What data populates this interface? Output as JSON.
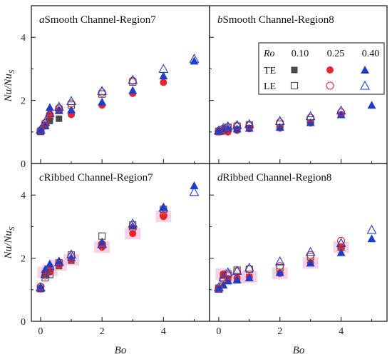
{
  "colors": {
    "ro010": "#4a4a4a",
    "ro025": "#e8262a",
    "ro040": "#1f3ccc",
    "highlight": "#f3c3dd"
  },
  "legend": {
    "title": "Ro",
    "columns": [
      "0.10",
      "0.25",
      "0.40"
    ],
    "rows": [
      "TE",
      "LE"
    ],
    "markers": {
      "TE": [
        "filled-square",
        "filled-circle",
        "filled-triangle"
      ],
      "LE": [
        "open-square",
        "open-circle",
        "open-triangle"
      ]
    }
  },
  "axes": {
    "xlabel": "Bo",
    "ylabel": "Nu/Nu",
    "ylabel_sub": "S",
    "xlim": [
      -0.3,
      5.5
    ],
    "ylim": [
      0,
      5
    ],
    "xticks": [
      "0",
      "2",
      "4"
    ],
    "yticks": [
      "0",
      "2",
      "4"
    ]
  },
  "chart_data": [
    {
      "type": "scatter",
      "letter": "a",
      "title": "Smooth Channel-Region7",
      "highlight": false,
      "series": [
        {
          "name": "TE Ro=0.10",
          "marker": "filled-square",
          "x": [
            0,
            0.15,
            0.3,
            0.6,
            1.0
          ],
          "y": [
            1.0,
            1.18,
            1.35,
            1.42,
            1.58
          ]
        },
        {
          "name": "TE Ro=0.25",
          "marker": "filled-circle",
          "x": [
            0,
            0.15,
            0.3,
            0.6,
            1.0,
            2.0,
            3.0,
            4.0
          ],
          "y": [
            1.02,
            1.22,
            1.55,
            1.68,
            1.55,
            1.85,
            2.22,
            2.57
          ]
        },
        {
          "name": "TE Ro=0.40",
          "marker": "filled-triangle",
          "x": [
            0,
            0.15,
            0.3,
            0.6,
            1.0,
            2.0,
            3.0,
            4.0,
            5.0
          ],
          "y": [
            1.05,
            1.2,
            1.78,
            1.68,
            1.7,
            1.95,
            2.32,
            2.78,
            3.25
          ]
        },
        {
          "name": "LE Ro=0.10",
          "marker": "open-square",
          "x": [
            0,
            0.15,
            0.3,
            0.6,
            1.0,
            2.0,
            3.0
          ],
          "y": [
            1.02,
            1.25,
            1.5,
            1.72,
            1.85,
            2.2,
            2.58
          ]
        },
        {
          "name": "LE Ro=0.25",
          "marker": "open-circle",
          "x": [
            0,
            0.15,
            0.3,
            0.6,
            1.0,
            2.0,
            3.0
          ],
          "y": [
            1.05,
            1.28,
            1.55,
            1.75,
            1.9,
            2.25,
            2.62
          ]
        },
        {
          "name": "LE Ro=0.40",
          "marker": "open-triangle",
          "x": [
            0,
            0.15,
            0.3,
            0.6,
            1.0,
            2.0,
            3.0,
            4.0,
            5.0
          ],
          "y": [
            1.08,
            1.32,
            1.6,
            1.8,
            1.98,
            2.3,
            2.65,
            3.0,
            3.32
          ]
        }
      ]
    },
    {
      "type": "scatter",
      "letter": "b",
      "title": "Smooth Channel-Region8",
      "highlight": false,
      "series": [
        {
          "name": "TE Ro=0.10",
          "marker": "filled-square",
          "x": [
            0,
            0.15,
            0.3,
            0.6,
            1.0
          ],
          "y": [
            1.0,
            1.02,
            1.05,
            1.08,
            1.12
          ]
        },
        {
          "name": "TE Ro=0.25",
          "marker": "filled-circle",
          "x": [
            0,
            0.15,
            0.3,
            0.6,
            1.0,
            2.0,
            3.0,
            4.0
          ],
          "y": [
            1.0,
            1.02,
            1.0,
            1.05,
            1.1,
            1.12,
            1.28,
            1.55
          ]
        },
        {
          "name": "TE Ro=0.40",
          "marker": "filled-triangle",
          "x": [
            0,
            0.15,
            0.3,
            0.6,
            1.0,
            2.0,
            3.0,
            4.0,
            5.0
          ],
          "y": [
            1.02,
            1.08,
            1.12,
            1.1,
            1.12,
            1.15,
            1.3,
            1.55,
            1.85
          ]
        },
        {
          "name": "LE Ro=0.10",
          "marker": "open-square",
          "x": [
            0,
            0.15,
            0.3,
            0.6,
            1.0,
            2.0,
            3.0
          ],
          "y": [
            1.02,
            1.08,
            1.15,
            1.18,
            1.22,
            1.25,
            1.38
          ]
        },
        {
          "name": "LE Ro=0.25",
          "marker": "open-circle",
          "x": [
            0,
            0.15,
            0.3,
            0.6,
            1.0,
            2.0,
            3.0,
            4.0
          ],
          "y": [
            1.03,
            1.1,
            1.15,
            1.2,
            1.2,
            1.3,
            1.45,
            1.62
          ]
        },
        {
          "name": "LE Ro=0.40",
          "marker": "open-triangle",
          "x": [
            0,
            0.15,
            0.3,
            0.6,
            1.0,
            2.0,
            3.0,
            4.0
          ],
          "y": [
            1.05,
            1.12,
            1.18,
            1.22,
            1.25,
            1.35,
            1.5,
            1.68
          ]
        }
      ]
    },
    {
      "type": "scatter",
      "letter": "c",
      "title": "Ribbed Channel-Region7",
      "highlight": true,
      "series": [
        {
          "name": "TE Ro=0.10",
          "marker": "filled-square",
          "x": [
            0,
            0.15,
            0.3,
            0.6,
            1.0
          ],
          "y": [
            1.02,
            1.5,
            1.58,
            1.75,
            1.92
          ]
        },
        {
          "name": "TE Ro=0.25",
          "marker": "filled-circle",
          "x": [
            0,
            0.15,
            0.3,
            0.6,
            1.0,
            2.0,
            3.0,
            4.0
          ],
          "y": [
            1.02,
            1.55,
            1.62,
            1.78,
            1.95,
            2.35,
            2.78,
            3.32
          ]
        },
        {
          "name": "TE Ro=0.40",
          "marker": "filled-triangle",
          "x": [
            0,
            0.15,
            0.3,
            0.6,
            1.0,
            2.0,
            3.0,
            4.0,
            5.0
          ],
          "y": [
            1.05,
            1.65,
            1.82,
            1.92,
            2.02,
            2.52,
            3.02,
            3.62,
            4.3
          ]
        },
        {
          "name": "LE Ro=0.10",
          "marker": "open-square",
          "x": [
            0,
            0.15,
            0.3,
            0.6,
            1.0,
            2.0,
            3.0,
            4.0
          ],
          "y": [
            1.05,
            1.38,
            1.48,
            1.85,
            2.1,
            2.7,
            3.05,
            3.55
          ]
        },
        {
          "name": "LE Ro=0.25",
          "marker": "open-circle",
          "x": [
            0,
            0.15,
            0.3,
            0.6,
            1.0,
            2.0,
            3.0,
            4.0
          ],
          "y": [
            1.1,
            1.45,
            1.58,
            1.82,
            2.05,
            2.45,
            2.95,
            3.35
          ]
        },
        {
          "name": "LE Ro=0.40",
          "marker": "open-triangle",
          "x": [
            0,
            0.15,
            0.3,
            0.6,
            1.0,
            2.0,
            3.0,
            4.0,
            5.0
          ],
          "y": [
            1.08,
            1.5,
            1.75,
            1.88,
            2.12,
            2.45,
            3.1,
            3.6,
            4.1
          ]
        }
      ]
    },
    {
      "type": "scatter",
      "letter": "d",
      "title": "Ribbed Channel-Region8",
      "highlight": true,
      "series": [
        {
          "name": "TE Ro=0.10",
          "marker": "filled-square",
          "x": [
            0,
            0.15,
            0.3,
            0.6,
            1.0
          ],
          "y": [
            1.02,
            1.45,
            1.32,
            1.3,
            1.4
          ]
        },
        {
          "name": "TE Ro=0.25",
          "marker": "filled-circle",
          "x": [
            0,
            0.15,
            0.3,
            0.6,
            1.0,
            2.0,
            3.0,
            4.0
          ],
          "y": [
            1.02,
            1.5,
            1.35,
            1.38,
            1.4,
            1.52,
            1.85,
            2.35
          ]
        },
        {
          "name": "TE Ro=0.40",
          "marker": "filled-triangle",
          "x": [
            0,
            0.15,
            0.3,
            0.6,
            1.0,
            2.0,
            3.0,
            4.0,
            5.0
          ],
          "y": [
            1.02,
            1.15,
            1.28,
            1.32,
            1.38,
            1.55,
            1.85,
            2.18,
            2.62
          ]
        },
        {
          "name": "LE Ro=0.10",
          "marker": "open-square",
          "x": [
            0,
            0.15,
            0.3,
            0.6,
            1.0,
            2.0,
            3.0,
            4.0
          ],
          "y": [
            1.05,
            1.3,
            1.5,
            1.62,
            1.65,
            1.7,
            2.05,
            2.35
          ]
        },
        {
          "name": "LE Ro=0.25",
          "marker": "open-circle",
          "x": [
            0,
            0.15,
            0.3,
            0.6,
            1.0,
            2.0,
            3.0,
            4.0
          ],
          "y": [
            1.05,
            1.35,
            1.45,
            1.58,
            1.65,
            1.75,
            2.1,
            2.55
          ]
        },
        {
          "name": "LE Ro=0.40",
          "marker": "open-triangle",
          "x": [
            0,
            0.15,
            0.3,
            0.6,
            1.0,
            2.0,
            3.0,
            4.0,
            5.0
          ],
          "y": [
            1.08,
            1.4,
            1.55,
            1.6,
            1.7,
            1.9,
            2.2,
            2.48,
            2.9
          ]
        }
      ]
    }
  ]
}
